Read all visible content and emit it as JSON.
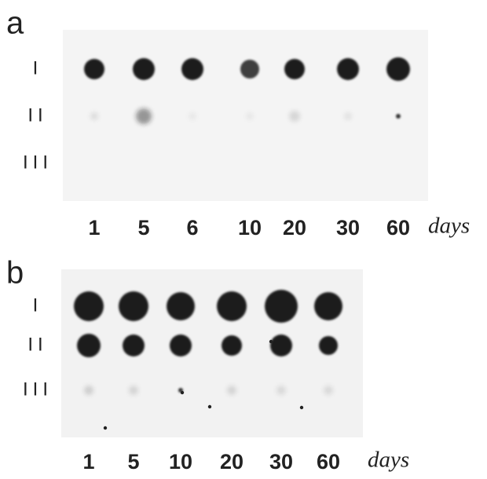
{
  "panels": [
    {
      "label": "a",
      "rows": [
        "I",
        "II",
        "III"
      ],
      "columns": [
        "1",
        "5",
        "6",
        "10",
        "20",
        "30",
        "60"
      ],
      "unit": "days"
    },
    {
      "label": "b",
      "rows": [
        "I",
        "II",
        "III"
      ],
      "columns": [
        "1",
        "5",
        "10",
        "20",
        "30",
        "60"
      ],
      "unit": "days"
    }
  ]
}
